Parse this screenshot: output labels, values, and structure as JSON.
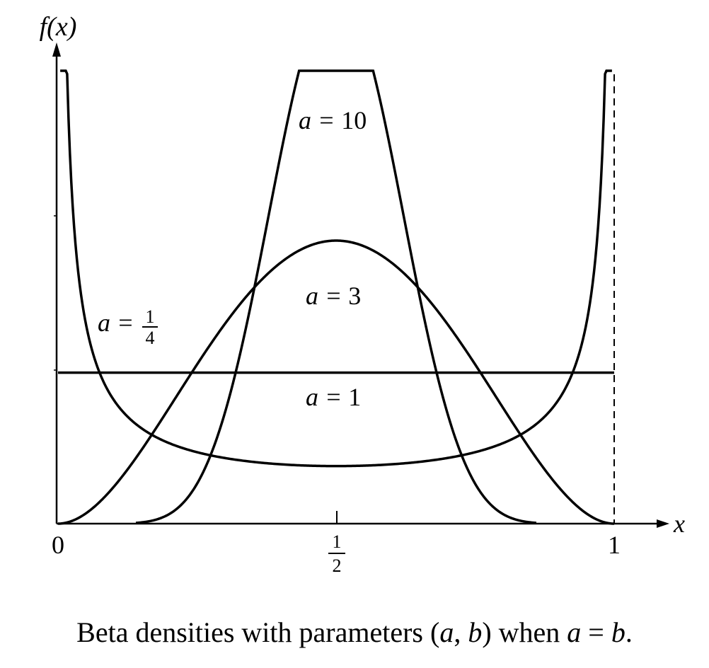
{
  "chart_data": {
    "type": "line",
    "title": "",
    "ylabel": "f(x)",
    "xlabel": "x",
    "xlim": [
      0,
      1
    ],
    "ylim": [
      0,
      3
    ],
    "x_ticks": [
      {
        "value": 0,
        "label": "0"
      },
      {
        "value": 0.5,
        "label_num": "1",
        "label_den": "2"
      },
      {
        "value": 1,
        "label": "1"
      }
    ],
    "reference_line": {
      "x": 1,
      "style": "dashed"
    },
    "grid": false,
    "series": [
      {
        "name": "a = 10",
        "a": 10,
        "b": 10,
        "label_prefix": "a = ",
        "label_value": "10",
        "x_range": [
          0.14,
          0.86
        ]
      },
      {
        "name": "a = 3",
        "a": 3,
        "b": 3,
        "label_prefix": "a = ",
        "label_value": "3",
        "x_range": [
          0,
          1
        ]
      },
      {
        "name": "a = 1",
        "a": 1,
        "b": 1,
        "label_prefix": "a = ",
        "label_value": "1",
        "x_range": [
          0,
          1
        ]
      },
      {
        "name": "a = 1/4",
        "a": 0.25,
        "b": 0.25,
        "label_prefix": "a = ",
        "label_num": "1",
        "label_den": "4",
        "x_range": [
          0.004,
          0.996
        ]
      }
    ]
  },
  "caption": {
    "prefix": "Beta densities with parameters (",
    "var_a": "a",
    "comma": ", ",
    "var_b": "b",
    "middle": ") when ",
    "eq_a": "a",
    "eq_sign": " = ",
    "eq_b": "b",
    "period": "."
  }
}
